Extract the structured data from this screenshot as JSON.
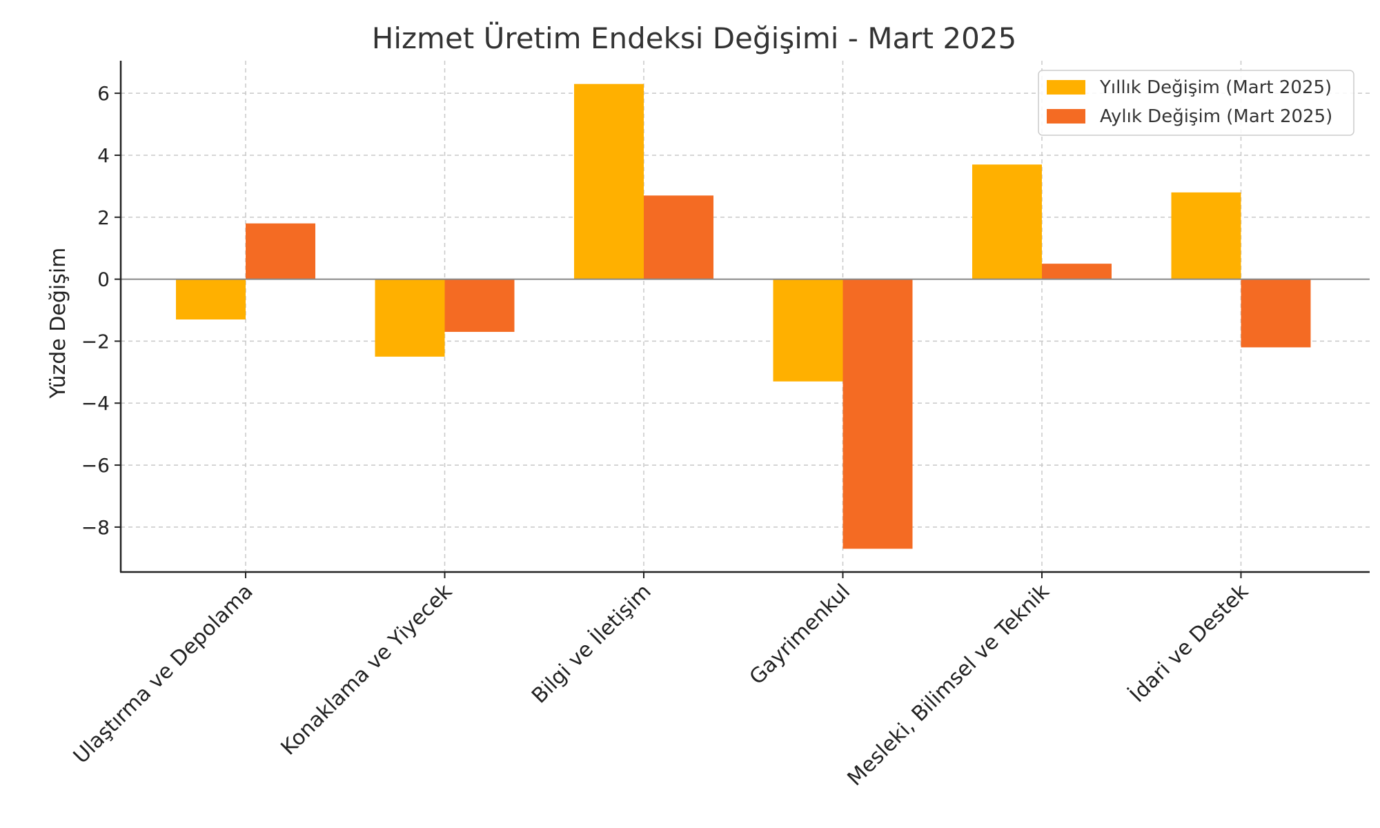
{
  "chart_data": {
    "type": "bar",
    "title": "Hizmet Üretim Endeksi Değişimi - Mart 2025",
    "xlabel": "",
    "ylabel": "Yüzde Değişim",
    "categories": [
      "Ulaştırma ve Depolama",
      "Konaklama ve Yiyecek",
      "Bilgi ve İletişim",
      "Gayrimenkul",
      "Mesleki, Bilimsel ve Teknik",
      "İdari ve Destek"
    ],
    "series": [
      {
        "name": "Yıllık Değişim (Mart 2025)",
        "color": "#FFB000",
        "values": [
          -1.3,
          -2.5,
          6.3,
          -3.3,
          3.7,
          2.8
        ]
      },
      {
        "name": "Aylık Değişim (Mart 2025)",
        "color": "#F46B23",
        "values": [
          1.8,
          -1.7,
          2.7,
          -8.7,
          0.5,
          -2.2
        ]
      }
    ],
    "ylim": [
      -9.45,
      7.05
    ],
    "yticks": [
      -8,
      -6,
      -4,
      -2,
      0,
      2,
      4,
      6
    ],
    "ytick_labels": [
      "−8",
      "−6",
      "−4",
      "−2",
      "0",
      "2",
      "4",
      "6"
    ],
    "grid": true,
    "legend_position": "top-right"
  }
}
